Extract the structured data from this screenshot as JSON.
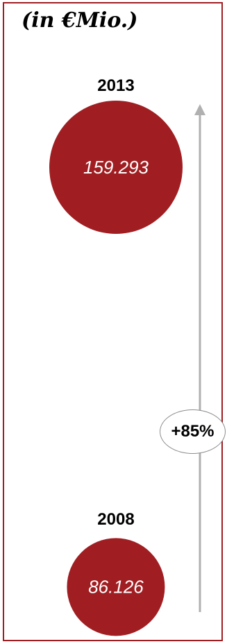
{
  "unit_label": "(in €Mio.)",
  "colors": {
    "bubble": "#a01e22",
    "frame": "#a01e22",
    "arrow": "#b0b0b0",
    "badge_border": "#8c8c8c"
  },
  "chart_data": {
    "type": "bubble",
    "title": "(in €Mio.)",
    "points": [
      {
        "year": "2013",
        "value": 159.293,
        "label": "159.293"
      },
      {
        "year": "2008",
        "value": 86.126,
        "label": "86.126"
      }
    ],
    "growth": {
      "label": "+85%",
      "direction": "up"
    }
  }
}
